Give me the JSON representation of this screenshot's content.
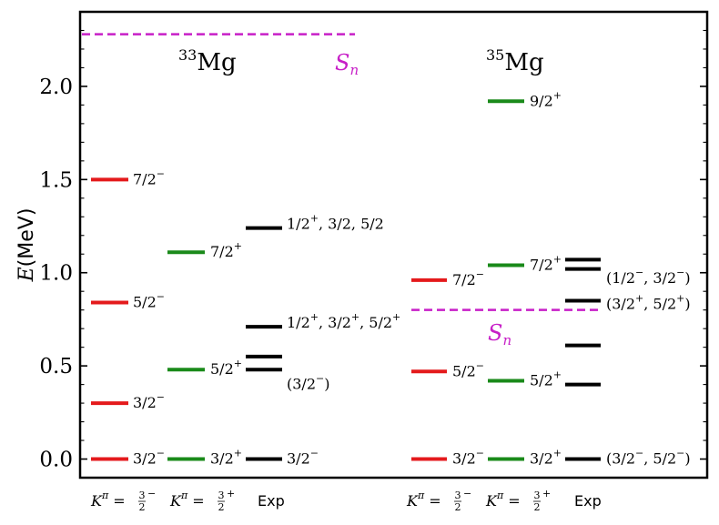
{
  "chart_data": {
    "type": "level-scheme",
    "ylabel": "E(MeV)",
    "ylim": [
      -0.1,
      2.4
    ],
    "yticks": [
      0.0,
      0.5,
      1.0,
      1.5,
      2.0
    ],
    "ytick_labels": [
      "0.0",
      "0.5",
      "1.0",
      "1.5",
      "2.0"
    ],
    "colors": {
      "neg": "#e41a1c",
      "pos": "#1a8a1a",
      "exp": "#000000",
      "sn": "#c71fc7"
    },
    "column_labels": [
      {
        "text": "K^π = 3/2^−",
        "kind": "kpi",
        "pre": "K",
        "sup": "π",
        "eq": " = ",
        "num": "3",
        "den": "2",
        "parity": "−"
      },
      {
        "text": "K^π = 3/2^+",
        "kind": "kpi",
        "pre": "K",
        "sup": "π",
        "eq": " = ",
        "num": "3",
        "den": "2",
        "parity": "+"
      },
      {
        "text": "Exp",
        "kind": "plain"
      },
      {
        "text": "K^π = 3/2^−",
        "kind": "kpi",
        "pre": "K",
        "sup": "π",
        "eq": " = ",
        "num": "3",
        "den": "2",
        "parity": "−"
      },
      {
        "text": "K^π = 3/2^+",
        "kind": "kpi",
        "pre": "K",
        "sup": "π",
        "eq": " = ",
        "num": "3",
        "den": "2",
        "parity": "+"
      },
      {
        "text": "Exp",
        "kind": "plain"
      }
    ],
    "nuclei": [
      {
        "mass": "33",
        "symbol": "Mg",
        "sn_label": "S",
        "sn_sub": "n",
        "sn_energy": 2.28,
        "columns": [
          {
            "color_key": "neg",
            "levels": [
              {
                "energy": 0.0,
                "label": "3/2",
                "parity": "−"
              },
              {
                "energy": 0.3,
                "label": "3/2",
                "parity": "−"
              },
              {
                "energy": 0.84,
                "label": "5/2",
                "parity": "−"
              },
              {
                "energy": 1.5,
                "label": "7/2",
                "parity": "−"
              }
            ]
          },
          {
            "color_key": "pos",
            "levels": [
              {
                "energy": 0.0,
                "label": "3/2",
                "parity": "+"
              },
              {
                "energy": 0.48,
                "label": "5/2",
                "parity": "+"
              },
              {
                "energy": 1.11,
                "label": "7/2",
                "parity": "+"
              }
            ]
          },
          {
            "color_key": "exp",
            "levels": [
              {
                "energy": 0.0,
                "label": "3/2",
                "parity": "−"
              },
              {
                "energy": 0.48,
                "label": "",
                "parity": ""
              },
              {
                "energy": 0.55,
                "label": "",
                "parity": ""
              },
              {
                "energy": 0.71,
                "label": "",
                "parity": ""
              },
              {
                "energy": 1.24,
                "label": "",
                "parity": ""
              }
            ]
          }
        ],
        "exp_annotations": [
          {
            "energy": 0.4,
            "text": "(3/2−)",
            "parts": [
              [
                "(3/2",
                ""
              ],
              [
                "−",
                "sup"
              ],
              [
                ")",
                ""
              ]
            ]
          },
          {
            "energy": 0.73,
            "text": "1/2+, 3/2+, 5/2+",
            "parts": [
              [
                "1/2",
                ""
              ],
              [
                "+",
                "sup"
              ],
              [
                ", 3/2",
                ""
              ],
              [
                "+",
                "sup"
              ],
              [
                ", 5/2",
                ""
              ],
              [
                "+",
                "sup"
              ]
            ]
          },
          {
            "energy": 1.26,
            "text": "1/2+, 3/2, 5/2",
            "parts": [
              [
                "1/2",
                ""
              ],
              [
                "+",
                "sup"
              ],
              [
                ", 3/2, 5/2",
                ""
              ]
            ]
          }
        ]
      },
      {
        "mass": "35",
        "symbol": "Mg",
        "sn_label": "S",
        "sn_sub": "n",
        "sn_energy": 0.8,
        "columns": [
          {
            "color_key": "neg",
            "levels": [
              {
                "energy": 0.0,
                "label": "3/2",
                "parity": "−"
              },
              {
                "energy": 0.47,
                "label": "5/2",
                "parity": "−"
              },
              {
                "energy": 0.96,
                "label": "7/2",
                "parity": "−"
              }
            ]
          },
          {
            "color_key": "pos",
            "levels": [
              {
                "energy": 0.0,
                "label": "3/2",
                "parity": "+"
              },
              {
                "energy": 0.42,
                "label": "5/2",
                "parity": "+"
              },
              {
                "energy": 1.04,
                "label": "7/2",
                "parity": "+"
              },
              {
                "energy": 1.92,
                "label": "9/2",
                "parity": "+"
              }
            ]
          },
          {
            "color_key": "exp",
            "levels": [
              {
                "energy": 0.0,
                "label": "",
                "parity": ""
              },
              {
                "energy": 0.4,
                "label": "",
                "parity": ""
              },
              {
                "energy": 0.61,
                "label": "",
                "parity": ""
              },
              {
                "energy": 0.85,
                "label": "",
                "parity": ""
              },
              {
                "energy": 1.02,
                "label": "",
                "parity": ""
              },
              {
                "energy": 1.07,
                "label": "",
                "parity": ""
              }
            ]
          }
        ],
        "exp_annotations": [
          {
            "energy": 0.0,
            "text": "(3/2−, 5/2−)",
            "parts": [
              [
                "(3/2",
                ""
              ],
              [
                "−",
                "sup"
              ],
              [
                ", 5/2",
                ""
              ],
              [
                "−",
                "sup"
              ],
              [
                ")",
                ""
              ]
            ]
          },
          {
            "energy": 0.83,
            "text": "(3/2+, 5/2+)",
            "parts": [
              [
                "(3/2",
                ""
              ],
              [
                "+",
                "sup"
              ],
              [
                ", 5/2",
                ""
              ],
              [
                "+",
                "sup"
              ],
              [
                ")",
                ""
              ]
            ]
          },
          {
            "energy": 0.97,
            "text": "(1/2−, 3/2−)",
            "parts": [
              [
                "(1/2",
                ""
              ],
              [
                "−",
                "sup"
              ],
              [
                ", 3/2",
                ""
              ],
              [
                "−",
                "sup"
              ],
              [
                ")",
                ""
              ]
            ]
          }
        ]
      }
    ]
  }
}
